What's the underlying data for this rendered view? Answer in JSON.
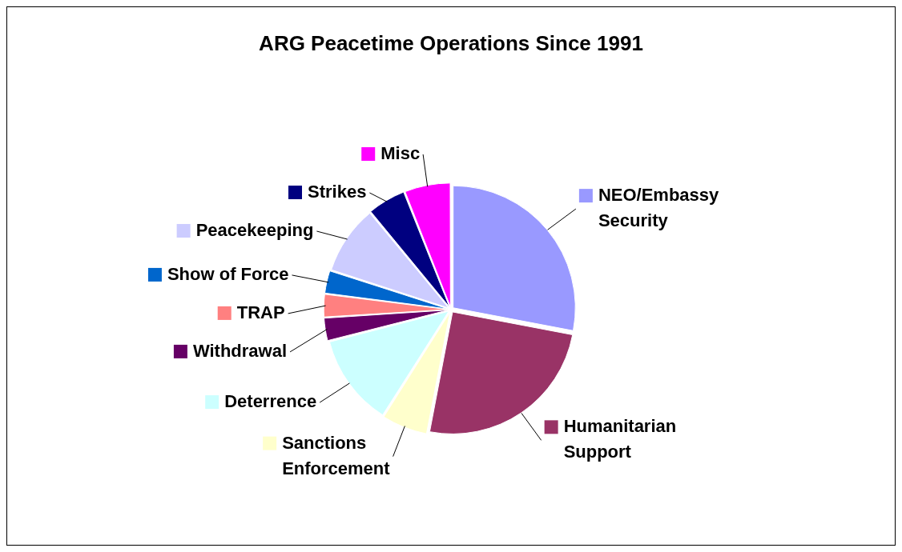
{
  "chart_data": {
    "type": "pie",
    "title": "ARG Peacetime Operations Since 1991",
    "categories": [
      "NEO/Embassy Security",
      "Humanitarian Support",
      "Sanctions Enforcement",
      "Deterrence",
      "Withdrawal",
      "TRAP",
      "Show of Force",
      "Peacekeeping",
      "Strikes",
      "Misc"
    ],
    "values": [
      28,
      25,
      6,
      12,
      3,
      3,
      3,
      9,
      5,
      6
    ],
    "legend": "bottom left",
    "colors": [
      "#9999ff",
      "#993366",
      "#ffffcc",
      "#ccffff",
      "#660066",
      "#ff8080",
      "#0066cc",
      "#ccccff",
      "#000080",
      "#ff00ff"
    ]
  }
}
